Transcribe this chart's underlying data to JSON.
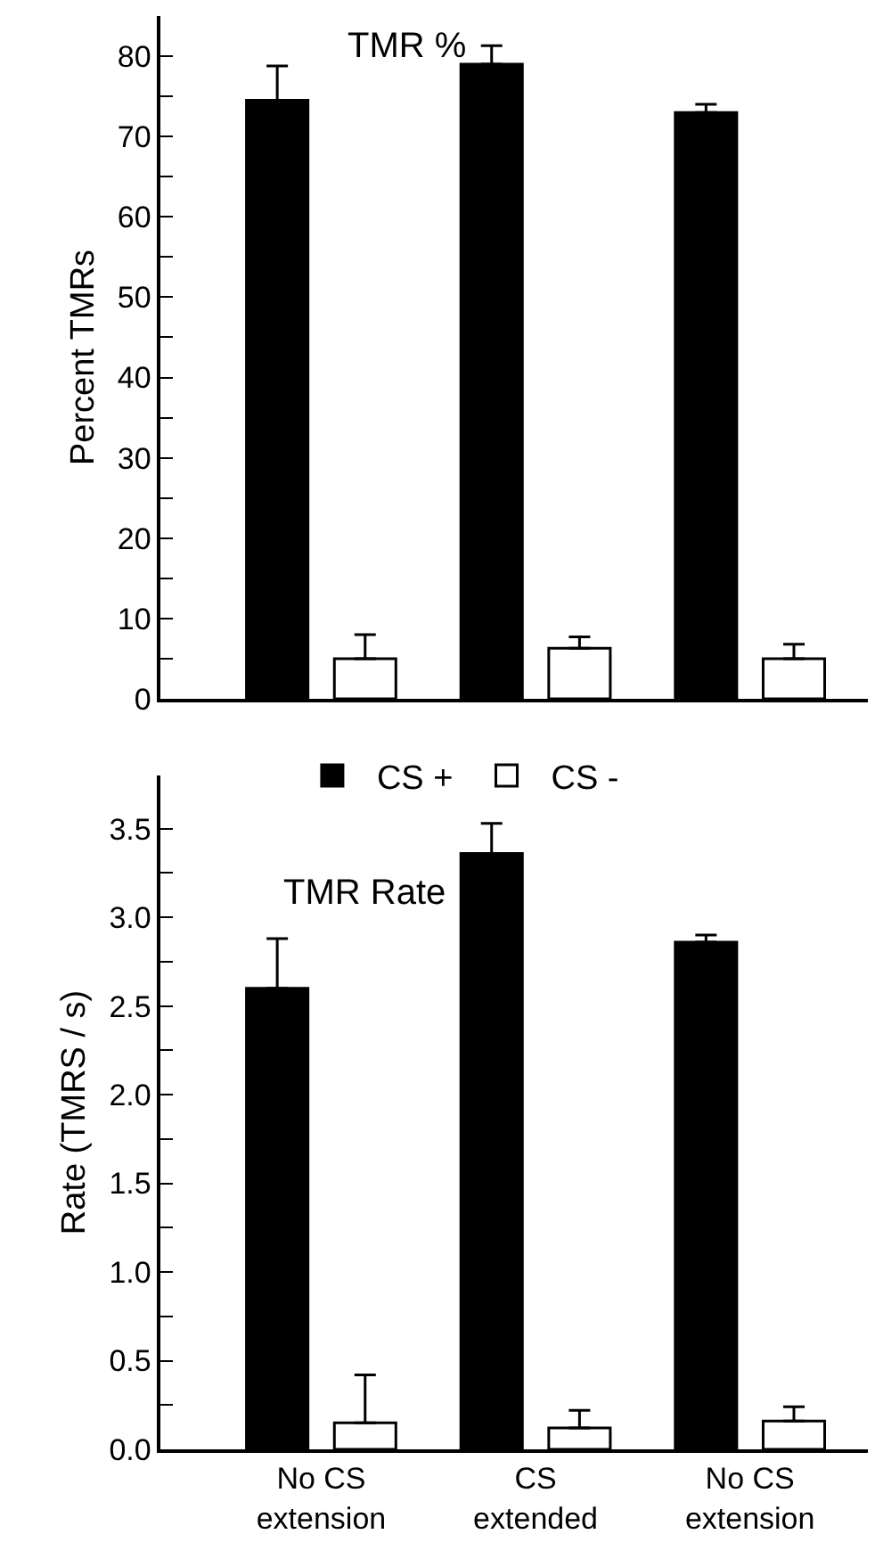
{
  "chart_data": [
    {
      "type": "bar",
      "title": "TMR %",
      "ylabel": "Percent TMRs",
      "categories": [
        null,
        null,
        null
      ],
      "tick_labels": "y",
      "series": [
        {
          "color": "#000000",
          "values": [
            74.5,
            79,
            73
          ],
          "errors": [
            [
              74.5,
              78.8
            ],
            [
              79,
              81.3
            ],
            [
              73,
              74
            ]
          ]
        },
        {
          "color": "#ffffff",
          "values": [
            5,
            6.3,
            5
          ],
          "errors": [
            [
              5,
              8
            ],
            [
              6.3,
              7.7
            ],
            [
              5,
              6.8
            ]
          ]
        }
      ],
      "ylim": [
        0,
        85
      ],
      "yticks": [
        0,
        {
          "value": 5,
          "label": null
        },
        10,
        {
          "value": 15,
          "label": null
        },
        20,
        {
          "value": 25,
          "label": null
        },
        30,
        {
          "value": 35,
          "label": null
        },
        40,
        {
          "value": 45,
          "label": null
        },
        50,
        {
          "value": 55,
          "label": null
        },
        60,
        {
          "value": 65,
          "label": null
        },
        70,
        {
          "value": 75,
          "label": null
        },
        80
      ],
      "grid": false,
      "legend": false
    },
    {
      "type": "bar",
      "title": "TMR Rate",
      "ylabel": "Rate (TMRS / s)",
      "categories": [
        "No CS extension",
        "CS extended",
        "No CS extension"
      ],
      "series": [
        {
          "name": "CS +",
          "color": "#000000",
          "values": [
            2.6,
            3.36,
            2.86
          ],
          "errors": [
            [
              2.6,
              2.88
            ],
            [
              3.36,
              3.53
            ],
            [
              2.86,
              2.9
            ]
          ]
        },
        {
          "name": "CS -",
          "color": "#ffffff",
          "values": [
            0.15,
            0.12,
            0.16
          ],
          "errors": [
            [
              0.15,
              0.42
            ],
            [
              0.12,
              0.22
            ],
            [
              0.16,
              0.24
            ]
          ]
        }
      ],
      "ylim": [
        0,
        3.8
      ],
      "yticks": [
        {
          "value": 0,
          "label": "0.0"
        },
        {
          "value": 0.25,
          "label": null
        },
        0.5,
        {
          "value": 0.75,
          "label": null
        },
        {
          "value": 1,
          "label": "1.0"
        },
        {
          "value": 1.25,
          "label": null
        },
        1.5,
        {
          "value": 1.75,
          "label": null
        },
        {
          "value": 2,
          "label": "2.0"
        },
        {
          "value": 2.25,
          "label": null
        },
        2.5,
        {
          "value": 2.75,
          "label": null
        },
        {
          "value": 3,
          "label": "3.0"
        },
        {
          "value": 3.25,
          "label": null
        },
        3.5
      ],
      "grid": false,
      "legend": "top"
    }
  ]
}
